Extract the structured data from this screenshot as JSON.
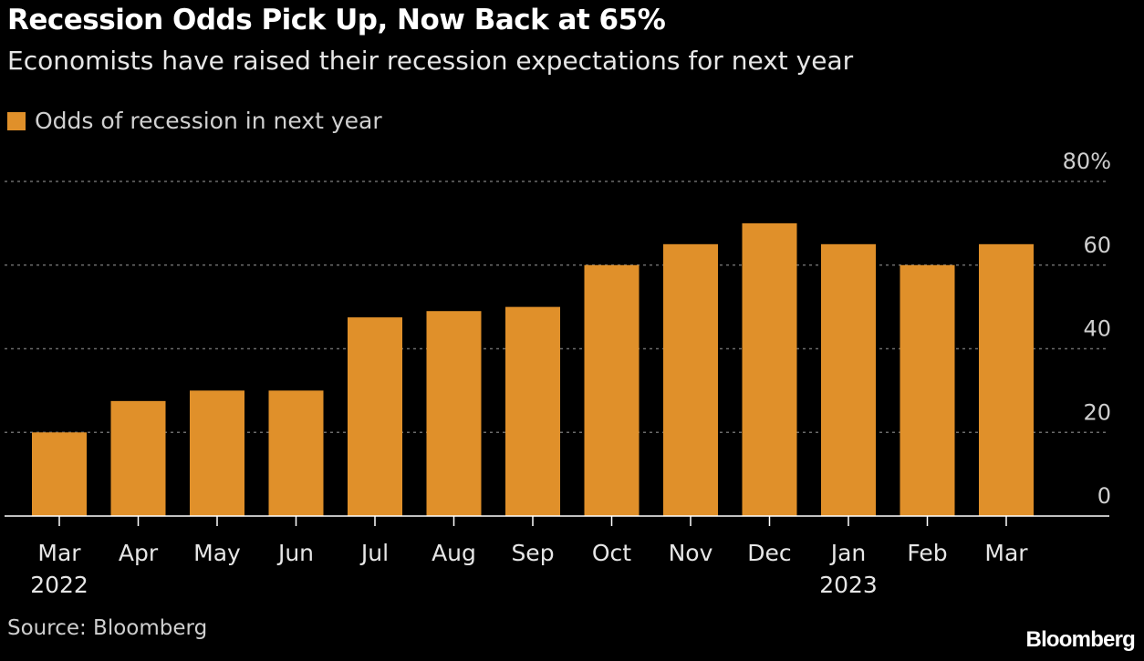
{
  "colors": {
    "background": "#000000",
    "bar": "#e0902a",
    "grid": "#6a6a6a",
    "axis": "#ffffff"
  },
  "legend": {
    "label": "Odds of recession in next year"
  },
  "source": "Source: Bloomberg",
  "brand": "Bloomberg",
  "chart_data": {
    "type": "bar",
    "title": "Recession Odds Pick Up, Now Back at 65%",
    "subtitle": "Economists have raised their recession expectations for next year",
    "categories": [
      "Mar",
      "Apr",
      "May",
      "Jun",
      "Jul",
      "Aug",
      "Sep",
      "Oct",
      "Nov",
      "Dec",
      "Jan",
      "Feb",
      "Mar"
    ],
    "year_labels": [
      "2022",
      "",
      "",
      "",
      "",
      "",
      "",
      "",
      "",
      "",
      "2023",
      "",
      ""
    ],
    "series": [
      {
        "name": "Odds of recession in next year",
        "values": [
          20,
          27.5,
          30,
          30,
          47.5,
          49,
          50,
          60,
          65,
          70,
          65,
          60,
          65
        ]
      }
    ],
    "ylim": [
      0,
      80
    ],
    "yticks": [
      0,
      20,
      40,
      60,
      80
    ],
    "ytick_labels": [
      "0",
      "20",
      "40",
      "60",
      "80%"
    ],
    "grid": true,
    "y_axis_position": "right",
    "legend_position": "top-left"
  }
}
